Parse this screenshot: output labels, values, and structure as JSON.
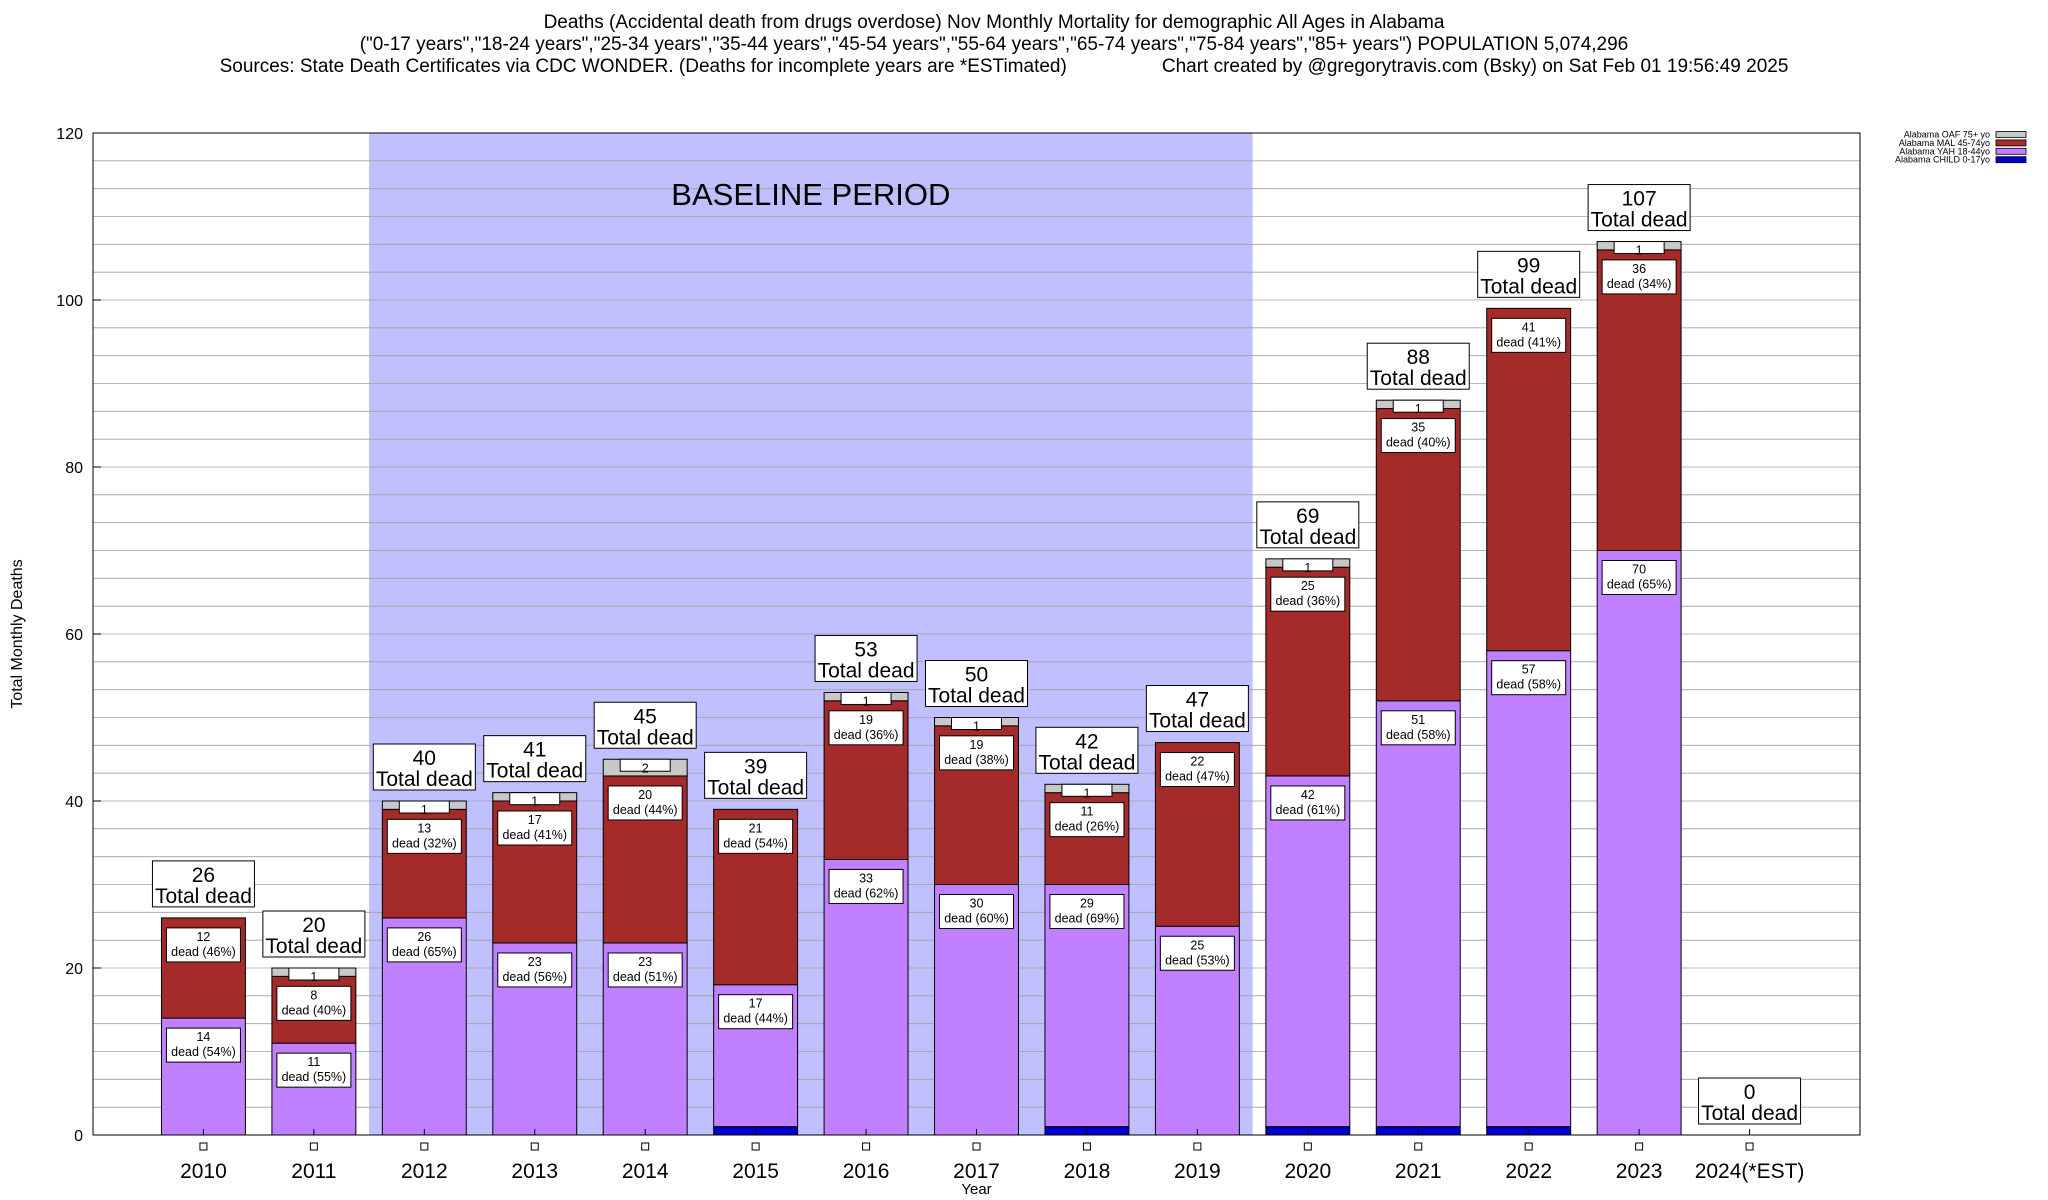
{
  "title": {
    "line1": "Deaths (Accidental death from drugs overdose) Nov Monthly Mortality for demographic All Ages in Alabama",
    "line2": "(\"0-17 years\",\"18-24 years\",\"25-34 years\",\"35-44 years\",\"45-54 years\",\"55-64 years\",\"65-74 years\",\"75-84 years\",\"85+ years\") POPULATION 5,074,296",
    "line3_left": "Sources: State Death Certificates via CDC WONDER. (Deaths for incomplete years are *ESTimated)",
    "line3_right": "Chart created by @gregorytravis.com (Bsky) on Sat Feb 01 19:56:49 2025"
  },
  "chart_data": {
    "type": "bar",
    "stacked": true,
    "xlabel": "Year",
    "ylabel": "Total Monthly Deaths",
    "ylim": [
      0,
      120
    ],
    "yticks": [
      0,
      20,
      40,
      60,
      80,
      100,
      120
    ],
    "grid": true,
    "legend_position": "top-right",
    "categories": [
      "2010",
      "2011",
      "2012",
      "2013",
      "2014",
      "2015",
      "2016",
      "2017",
      "2018",
      "2019",
      "2020",
      "2021",
      "2022",
      "2023",
      "2024(*EST)"
    ],
    "series": [
      {
        "name": "Alabama CHILD 0-17yo",
        "color": "#0000cc",
        "values": [
          0,
          0,
          0,
          0,
          0,
          1,
          0,
          0,
          1,
          0,
          1,
          1,
          1,
          0,
          0
        ]
      },
      {
        "name": "Alabama YAH 18-44yo",
        "color": "#c080ff",
        "values": [
          14,
          11,
          26,
          23,
          23,
          17,
          33,
          30,
          29,
          25,
          42,
          51,
          57,
          70,
          0
        ],
        "labels": [
          "14\ndead (54%)",
          "11\ndead (55%)",
          "26\ndead (65%)",
          "23\ndead (56%)",
          "23\ndead (51%)",
          "17\ndead (44%)",
          "33\ndead (62%)",
          "30\ndead (60%)",
          "29\ndead (69%)",
          "25\ndead (53%)",
          "42\ndead (61%)",
          "51\ndead (58%)",
          "57\ndead (58%)",
          "70\ndead (65%)",
          ""
        ]
      },
      {
        "name": "Alabama MAL 45-74yo",
        "color": "#a52a2a",
        "values": [
          12,
          8,
          13,
          17,
          20,
          21,
          19,
          19,
          11,
          22,
          25,
          35,
          41,
          36,
          0
        ],
        "labels": [
          "12\ndead (46%)",
          "8\ndead (40%)",
          "13\ndead (32%)",
          "17\ndead (41%)",
          "20\ndead (44%)",
          "21\ndead (54%)",
          "19\ndead (36%)",
          "19\ndead (38%)",
          "11\ndead (26%)",
          "22\ndead (47%)",
          "25\ndead (36%)",
          "35\ndead (40%)",
          "41\ndead (41%)",
          "36\ndead (34%)",
          ""
        ]
      },
      {
        "name": "Alabama OAF 75+ yo",
        "color": "#c8c8c8",
        "values": [
          0,
          1,
          1,
          1,
          2,
          0,
          1,
          1,
          1,
          0,
          1,
          1,
          0,
          1,
          0
        ],
        "labels": [
          "",
          "1",
          "1",
          "1",
          "2",
          "",
          "1",
          "1",
          "1",
          "",
          "1",
          "1",
          "",
          "1",
          ""
        ]
      }
    ],
    "totals": [
      26,
      20,
      40,
      41,
      45,
      39,
      53,
      50,
      42,
      47,
      69,
      88,
      99,
      107,
      0
    ],
    "total_label_suffix": "Total dead",
    "annotation": {
      "text": "BASELINE PERIOD",
      "from": "2012",
      "to": "2019",
      "color": "#c0c0ff"
    }
  }
}
